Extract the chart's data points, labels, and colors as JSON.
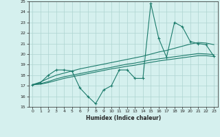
{
  "title": "",
  "xlabel": "Humidex (Indice chaleur)",
  "x": [
    0,
    1,
    2,
    3,
    4,
    5,
    6,
    7,
    8,
    9,
    10,
    11,
    12,
    13,
    14,
    15,
    16,
    17,
    18,
    19,
    20,
    21,
    22,
    23
  ],
  "y_main": [
    17.1,
    17.3,
    18.0,
    18.5,
    18.5,
    18.4,
    16.8,
    16.0,
    15.3,
    16.6,
    17.0,
    18.5,
    18.5,
    17.7,
    17.7,
    24.8,
    21.5,
    19.7,
    23.0,
    22.6,
    21.2,
    21.0,
    20.9,
    19.8
  ],
  "y_trend1": [
    17.1,
    17.35,
    17.7,
    18.0,
    18.2,
    18.4,
    18.6,
    18.75,
    18.9,
    19.05,
    19.2,
    19.35,
    19.5,
    19.65,
    19.8,
    20.0,
    20.2,
    20.35,
    20.55,
    20.75,
    20.95,
    21.1,
    21.05,
    20.9
  ],
  "y_trend2": [
    17.1,
    17.2,
    17.4,
    17.65,
    17.85,
    18.0,
    18.15,
    18.3,
    18.45,
    18.6,
    18.75,
    18.9,
    19.05,
    19.15,
    19.3,
    19.45,
    19.55,
    19.65,
    19.75,
    19.85,
    19.95,
    20.05,
    20.02,
    19.95
  ],
  "y_trend3": [
    17.1,
    17.15,
    17.3,
    17.5,
    17.7,
    17.85,
    18.0,
    18.15,
    18.3,
    18.45,
    18.6,
    18.72,
    18.85,
    18.95,
    19.1,
    19.22,
    19.35,
    19.45,
    19.55,
    19.65,
    19.75,
    19.85,
    19.85,
    19.78
  ],
  "line_color": "#1a7a6a",
  "bg_color": "#d5f0ee",
  "grid_color": "#aed4d0",
  "tick_color": "#222222",
  "ylim": [
    15,
    25
  ],
  "xlim": [
    -0.5,
    23.5
  ]
}
